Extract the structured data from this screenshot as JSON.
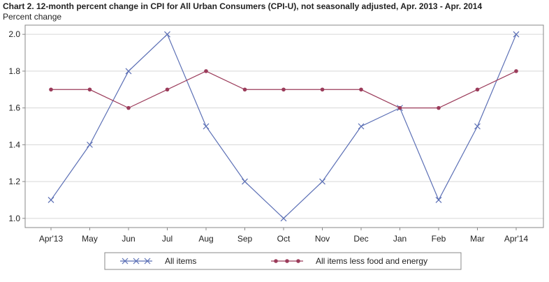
{
  "chart_data": {
    "type": "line",
    "title": "Chart 2. 12-month percent change in CPI for All Urban Consumers (CPI-U), not seasonally adjusted, Apr. 2013 - Apr. 2014",
    "ylabel": "Percent change",
    "xlabel": "",
    "categories": [
      "Apr'13",
      "May",
      "Jun",
      "Jul",
      "Aug",
      "Sep",
      "Oct",
      "Nov",
      "Dec",
      "Jan",
      "Feb",
      "Mar",
      "Apr'14"
    ],
    "ylim": [
      0.95,
      2.05
    ],
    "yticks": [
      "1.0",
      "1.2",
      "1.4",
      "1.6",
      "1.8",
      "2.0"
    ],
    "grid": "horizontal",
    "legend_position": "bottom",
    "series": [
      {
        "name": "All items",
        "values": [
          1.1,
          1.4,
          1.8,
          2.0,
          1.5,
          1.2,
          1.0,
          1.2,
          1.5,
          1.6,
          1.1,
          1.5,
          2.0
        ],
        "color": "#5b6fb5",
        "marker": "x"
      },
      {
        "name": "All items less food and energy",
        "values": [
          1.7,
          1.7,
          1.6,
          1.7,
          1.8,
          1.7,
          1.7,
          1.7,
          1.7,
          1.6,
          1.6,
          1.7,
          1.8
        ],
        "color": "#9b3b5a",
        "marker": "dot"
      }
    ]
  }
}
